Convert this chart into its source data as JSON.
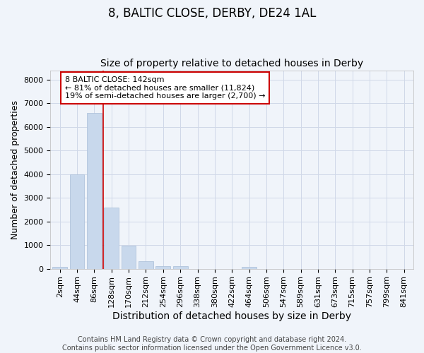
{
  "title": "8, BALTIC CLOSE, DERBY, DE24 1AL",
  "subtitle": "Size of property relative to detached houses in Derby",
  "xlabel": "Distribution of detached houses by size in Derby",
  "ylabel": "Number of detached properties",
  "categories": [
    "2sqm",
    "44sqm",
    "86sqm",
    "128sqm",
    "170sqm",
    "212sqm",
    "254sqm",
    "296sqm",
    "338sqm",
    "380sqm",
    "422sqm",
    "464sqm",
    "506sqm",
    "547sqm",
    "589sqm",
    "631sqm",
    "673sqm",
    "715sqm",
    "757sqm",
    "799sqm",
    "841sqm"
  ],
  "values": [
    80,
    4000,
    6600,
    2600,
    960,
    330,
    120,
    100,
    0,
    0,
    0,
    85,
    0,
    0,
    0,
    0,
    0,
    0,
    0,
    0,
    0
  ],
  "bar_color": "#c8d8ec",
  "bar_edge_color": "#a8bdd8",
  "vline_color": "#cc0000",
  "vline_x": 2.5,
  "annotation_text": "8 BALTIC CLOSE: 142sqm\n← 81% of detached houses are smaller (11,824)\n19% of semi-detached houses are larger (2,700) →",
  "annotation_box_color": "white",
  "annotation_box_edge_color": "#cc0000",
  "ylim": [
    0,
    8400
  ],
  "yticks": [
    0,
    1000,
    2000,
    3000,
    4000,
    5000,
    6000,
    7000,
    8000
  ],
  "background_color": "#f0f4fa",
  "plot_background": "#f0f4fa",
  "grid_color": "#d0d8e8",
  "footer_line1": "Contains HM Land Registry data © Crown copyright and database right 2024.",
  "footer_line2": "Contains public sector information licensed under the Open Government Licence v3.0.",
  "title_fontsize": 12,
  "subtitle_fontsize": 10,
  "xlabel_fontsize": 10,
  "ylabel_fontsize": 9,
  "tick_fontsize": 8,
  "annotation_fontsize": 8,
  "footer_fontsize": 7
}
